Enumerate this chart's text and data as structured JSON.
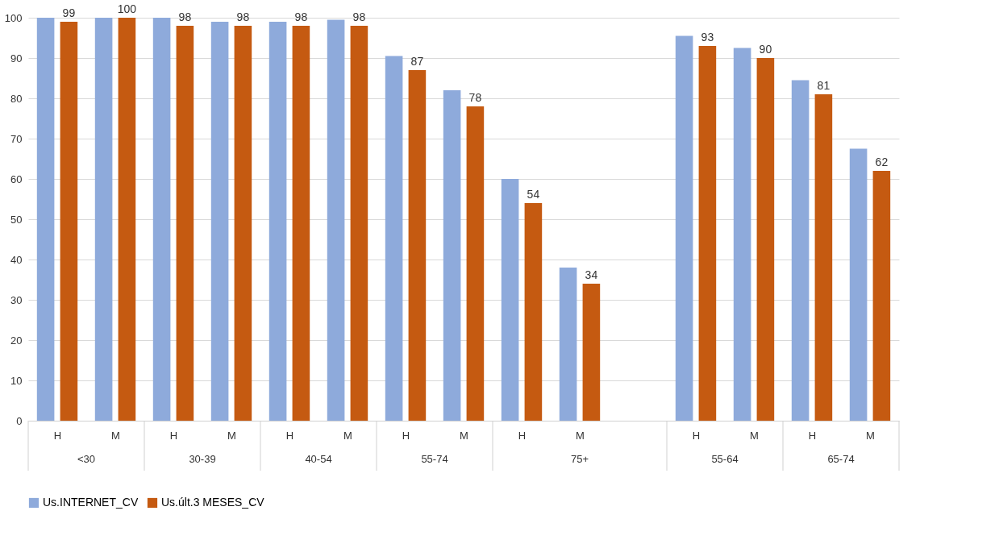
{
  "chart_data": {
    "type": "bar",
    "categories": [
      "H",
      "M",
      "H",
      "M",
      "H",
      "M",
      "H",
      "M",
      "H",
      "M",
      null,
      "H",
      "M",
      "H",
      "M"
    ],
    "series": [
      {
        "name": "Us.INTERNET_CV",
        "color": "#8eaadb",
        "values": [
          100,
          100,
          100,
          99,
          99,
          99.5,
          90.5,
          82,
          60,
          38,
          null,
          95.5,
          92.5,
          84.5,
          67.5
        ]
      },
      {
        "name": "Us.últ.3 MESES_CV",
        "color": "#c55a11",
        "values": [
          99,
          100,
          98,
          98,
          98,
          98,
          87,
          78,
          54,
          34,
          null,
          93,
          90,
          81,
          62
        ],
        "data_labels": true
      }
    ],
    "annotations": [
      "<30",
      "30-39",
      "40-54",
      "55-74",
      "75+",
      "55-64",
      "65-74"
    ],
    "ylim": [
      0,
      100
    ],
    "yticks": [
      0,
      10,
      20,
      30,
      40,
      50,
      60,
      70,
      80,
      90,
      100
    ],
    "grid": "y",
    "legend": "bottom"
  }
}
